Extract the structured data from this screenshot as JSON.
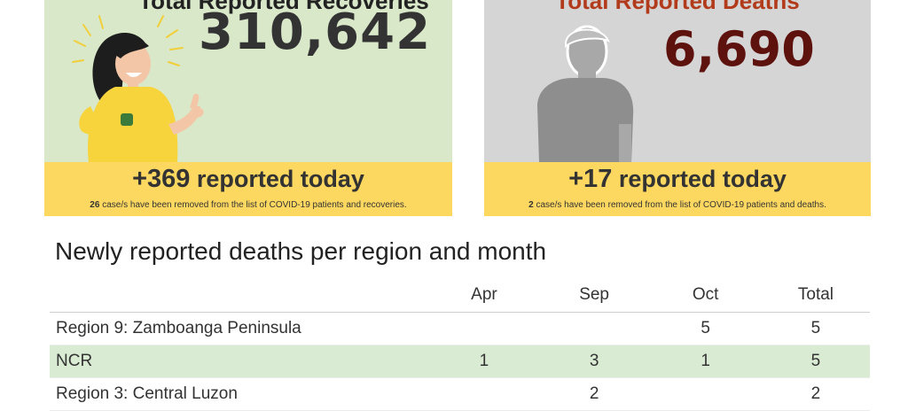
{
  "recoveries_card": {
    "title": "Total Reported Recoveries",
    "count": "310,642",
    "today_count": "+369",
    "today_label": " reported today",
    "removed_count": "26",
    "removed_text": " case/s have been removed from the list of COVID-19 patients and recoveries."
  },
  "deaths_card": {
    "title": "Total Reported Deaths",
    "count": "6,690",
    "today_count": "+17",
    "today_label": " reported today",
    "removed_count": "2",
    "removed_text": " case/s have been removed from the list of COVID-19 patients and deaths."
  },
  "table": {
    "title": "Newly reported deaths per region and month",
    "headers": [
      "",
      "Apr",
      "Sep",
      "Oct",
      "Total"
    ],
    "rows": [
      [
        "Region 9: Zamboanga Peninsula",
        "",
        "",
        "5",
        "5"
      ],
      [
        "NCR",
        "1",
        "3",
        "1",
        "5"
      ],
      [
        "Region 3: Central Luzon",
        "",
        "2",
        "",
        "2"
      ]
    ]
  },
  "colors": {
    "recoveries_bg": "#d8e8c9",
    "deaths_bg": "#d5d5d5",
    "band": "#fdd860",
    "deaths_number": "#5e120e",
    "row_highlight": "#d9ebd3"
  },
  "icons": [
    "happy-woman-illustration",
    "person-silhouette-illustration"
  ]
}
